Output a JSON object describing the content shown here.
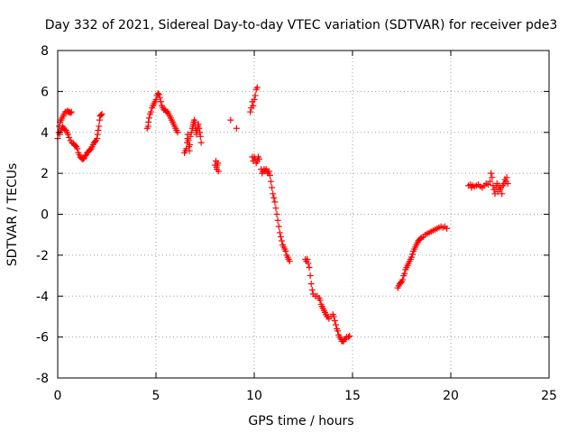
{
  "chart_data": {
    "type": "scatter",
    "title": "Day 332 of 2021, Sidereal Day-to-day VTEC variation (SDTVAR) for receiver pde3",
    "xlabel": "GPS time / hours",
    "ylabel": "SDTVAR / TECUs",
    "xlim": [
      0,
      25
    ],
    "ylim": [
      -8,
      8
    ],
    "xticks": [
      0,
      5,
      10,
      15,
      20,
      25
    ],
    "yticks": [
      -8,
      -6,
      -4,
      -2,
      0,
      2,
      4,
      6,
      8
    ],
    "xtick_labels": [
      "0",
      "5",
      "10",
      "15",
      "20",
      "25"
    ],
    "ytick_labels": [
      "-8",
      "-6",
      "-4",
      "-2",
      "0",
      "2",
      "4",
      "6",
      "8"
    ],
    "grid": true,
    "marker": "+",
    "color": "#ff0000",
    "series": [
      {
        "name": "SDTVAR",
        "points": [
          [
            0.0,
            3.7
          ],
          [
            0.05,
            4.0
          ],
          [
            0.08,
            4.3
          ],
          [
            0.12,
            4.5
          ],
          [
            0.18,
            4.6
          ],
          [
            0.22,
            4.7
          ],
          [
            0.28,
            4.8
          ],
          [
            0.32,
            4.9
          ],
          [
            0.38,
            5.0
          ],
          [
            0.45,
            5.0
          ],
          [
            0.5,
            5.05
          ],
          [
            0.55,
            5.0
          ],
          [
            0.6,
            5.0
          ],
          [
            0.65,
            4.95
          ],
          [
            0.7,
            5.0
          ],
          [
            0.1,
            3.9
          ],
          [
            0.15,
            4.1
          ],
          [
            0.2,
            4.2
          ],
          [
            0.25,
            4.3
          ],
          [
            0.3,
            4.2
          ],
          [
            0.35,
            4.15
          ],
          [
            0.42,
            4.1
          ],
          [
            0.48,
            4.0
          ],
          [
            0.52,
            3.9
          ],
          [
            0.58,
            3.75
          ],
          [
            0.65,
            3.6
          ],
          [
            0.72,
            3.5
          ],
          [
            0.8,
            3.45
          ],
          [
            0.85,
            3.4
          ],
          [
            0.9,
            3.35
          ],
          [
            0.95,
            3.3
          ],
          [
            1.0,
            3.2
          ],
          [
            1.05,
            3.0
          ],
          [
            1.1,
            2.9
          ],
          [
            1.15,
            2.8
          ],
          [
            1.2,
            2.75
          ],
          [
            1.25,
            2.7
          ],
          [
            1.3,
            2.7
          ],
          [
            1.35,
            2.75
          ],
          [
            1.4,
            2.85
          ],
          [
            1.45,
            2.9
          ],
          [
            1.5,
            3.0
          ],
          [
            1.55,
            3.05
          ],
          [
            1.6,
            3.1
          ],
          [
            1.65,
            3.15
          ],
          [
            1.7,
            3.2
          ],
          [
            1.75,
            3.3
          ],
          [
            1.8,
            3.4
          ],
          [
            1.85,
            3.5
          ],
          [
            1.9,
            3.55
          ],
          [
            1.95,
            3.6
          ],
          [
            2.0,
            3.7
          ],
          [
            2.03,
            3.9
          ],
          [
            2.06,
            4.1
          ],
          [
            2.1,
            4.3
          ],
          [
            2.13,
            4.6
          ],
          [
            2.16,
            4.8
          ],
          [
            2.2,
            4.85
          ],
          [
            2.25,
            4.9
          ],
          [
            4.55,
            4.2
          ],
          [
            4.6,
            4.3
          ],
          [
            4.62,
            4.5
          ],
          [
            4.65,
            4.7
          ],
          [
            4.7,
            4.9
          ],
          [
            4.75,
            5.0
          ],
          [
            4.8,
            5.2
          ],
          [
            4.85,
            5.3
          ],
          [
            4.9,
            5.4
          ],
          [
            4.95,
            5.5
          ],
          [
            5.0,
            5.6
          ],
          [
            5.05,
            5.8
          ],
          [
            5.1,
            5.9
          ],
          [
            5.15,
            5.85
          ],
          [
            5.2,
            5.7
          ],
          [
            5.25,
            5.5
          ],
          [
            5.3,
            5.3
          ],
          [
            5.35,
            5.2
          ],
          [
            5.4,
            5.1
          ],
          [
            5.45,
            5.1
          ],
          [
            5.5,
            5.05
          ],
          [
            5.55,
            5.0
          ],
          [
            5.6,
            5.0
          ],
          [
            5.65,
            4.9
          ],
          [
            5.7,
            4.8
          ],
          [
            5.75,
            4.7
          ],
          [
            5.8,
            4.6
          ],
          [
            5.85,
            4.5
          ],
          [
            5.9,
            4.4
          ],
          [
            5.95,
            4.3
          ],
          [
            6.0,
            4.2
          ],
          [
            6.05,
            4.1
          ],
          [
            6.1,
            4.0
          ],
          [
            6.45,
            3.0
          ],
          [
            6.5,
            3.1
          ],
          [
            6.55,
            3.2
          ],
          [
            6.58,
            3.5
          ],
          [
            6.6,
            3.7
          ],
          [
            6.62,
            3.9
          ],
          [
            6.65,
            3.6
          ],
          [
            6.68,
            3.3
          ],
          [
            6.7,
            3.1
          ],
          [
            6.72,
            3.4
          ],
          [
            6.75,
            3.8
          ],
          [
            6.8,
            4.0
          ],
          [
            6.85,
            4.2
          ],
          [
            6.88,
            4.3
          ],
          [
            6.9,
            4.4
          ],
          [
            6.92,
            4.5
          ],
          [
            6.95,
            4.6
          ],
          [
            6.98,
            4.5
          ],
          [
            7.0,
            4.3
          ],
          [
            7.03,
            4.1
          ],
          [
            7.06,
            3.9
          ],
          [
            7.1,
            4.1
          ],
          [
            7.13,
            4.3
          ],
          [
            7.16,
            4.4
          ],
          [
            7.2,
            4.2
          ],
          [
            7.23,
            4.0
          ],
          [
            7.26,
            3.8
          ],
          [
            7.3,
            3.5
          ],
          [
            8.0,
            2.4
          ],
          [
            8.05,
            2.6
          ],
          [
            8.08,
            2.3
          ],
          [
            8.1,
            2.2
          ],
          [
            8.12,
            2.4
          ],
          [
            8.15,
            2.5
          ],
          [
            8.18,
            2.1
          ],
          [
            8.8,
            4.6
          ],
          [
            9.1,
            4.2
          ],
          [
            9.8,
            5.0
          ],
          [
            9.85,
            5.2
          ],
          [
            9.9,
            5.5
          ],
          [
            9.95,
            5.3
          ],
          [
            10.0,
            5.6
          ],
          [
            10.05,
            5.8
          ],
          [
            10.1,
            6.1
          ],
          [
            10.15,
            6.2
          ],
          [
            9.9,
            2.8
          ],
          [
            9.95,
            2.6
          ],
          [
            10.0,
            2.8
          ],
          [
            10.05,
            2.7
          ],
          [
            10.1,
            2.5
          ],
          [
            10.15,
            2.6
          ],
          [
            10.2,
            2.8
          ],
          [
            10.25,
            2.7
          ],
          [
            10.35,
            2.2
          ],
          [
            10.4,
            2.0
          ],
          [
            10.45,
            2.1
          ],
          [
            10.5,
            2.2
          ],
          [
            10.55,
            2.1
          ],
          [
            10.6,
            2.2
          ],
          [
            10.65,
            2.1
          ],
          [
            10.7,
            2.0
          ],
          [
            10.75,
            2.1
          ],
          [
            10.8,
            1.9
          ],
          [
            10.85,
            1.6
          ],
          [
            10.9,
            1.3
          ],
          [
            10.95,
            1.0
          ],
          [
            11.0,
            0.8
          ],
          [
            11.05,
            0.6
          ],
          [
            11.1,
            0.3
          ],
          [
            11.15,
            0.0
          ],
          [
            11.2,
            -0.3
          ],
          [
            11.25,
            -0.6
          ],
          [
            11.3,
            -0.9
          ],
          [
            11.35,
            -1.1
          ],
          [
            11.4,
            -1.3
          ],
          [
            11.45,
            -1.5
          ],
          [
            11.5,
            -1.6
          ],
          [
            11.55,
            -1.7
          ],
          [
            11.6,
            -1.8
          ],
          [
            11.65,
            -2.0
          ],
          [
            11.7,
            -2.1
          ],
          [
            11.75,
            -2.2
          ],
          [
            11.8,
            -2.3
          ],
          [
            12.6,
            -2.2
          ],
          [
            12.65,
            -2.3
          ],
          [
            12.7,
            -2.2
          ],
          [
            12.75,
            -2.4
          ],
          [
            12.8,
            -2.6
          ],
          [
            12.85,
            -3.0
          ],
          [
            12.9,
            -3.4
          ],
          [
            12.95,
            -3.7
          ],
          [
            13.0,
            -3.9
          ],
          [
            13.1,
            -4.0
          ],
          [
            13.2,
            -4.0
          ],
          [
            13.3,
            -4.1
          ],
          [
            13.35,
            -4.2
          ],
          [
            13.4,
            -4.4
          ],
          [
            13.45,
            -4.5
          ],
          [
            13.5,
            -4.6
          ],
          [
            13.55,
            -4.7
          ],
          [
            13.6,
            -4.8
          ],
          [
            13.65,
            -4.9
          ],
          [
            13.7,
            -5.0
          ],
          [
            13.75,
            -5.0
          ],
          [
            13.8,
            -5.1
          ],
          [
            13.9,
            -5.0
          ],
          [
            14.0,
            -4.9
          ],
          [
            14.05,
            -5.0
          ],
          [
            14.1,
            -5.2
          ],
          [
            14.15,
            -5.4
          ],
          [
            14.2,
            -5.6
          ],
          [
            14.25,
            -5.7
          ],
          [
            14.3,
            -5.9
          ],
          [
            14.35,
            -6.0
          ],
          [
            14.4,
            -6.1
          ],
          [
            14.45,
            -6.2
          ],
          [
            14.5,
            -6.2
          ],
          [
            14.55,
            -6.2
          ],
          [
            14.6,
            -6.1
          ],
          [
            14.65,
            -6.1
          ],
          [
            14.7,
            -6.0
          ],
          [
            14.8,
            -6.0
          ],
          [
            14.85,
            -5.95
          ],
          [
            17.3,
            -3.6
          ],
          [
            17.35,
            -3.5
          ],
          [
            17.4,
            -3.4
          ],
          [
            17.45,
            -3.35
          ],
          [
            17.5,
            -3.3
          ],
          [
            17.55,
            -3.2
          ],
          [
            17.6,
            -3.0
          ],
          [
            17.65,
            -2.9
          ],
          [
            17.7,
            -2.7
          ],
          [
            17.75,
            -2.6
          ],
          [
            17.8,
            -2.5
          ],
          [
            17.85,
            -2.4
          ],
          [
            17.9,
            -2.3
          ],
          [
            17.95,
            -2.2
          ],
          [
            18.0,
            -2.1
          ],
          [
            18.05,
            -1.95
          ],
          [
            18.1,
            -1.8
          ],
          [
            18.15,
            -1.7
          ],
          [
            18.2,
            -1.6
          ],
          [
            18.25,
            -1.5
          ],
          [
            18.3,
            -1.4
          ],
          [
            18.35,
            -1.3
          ],
          [
            18.4,
            -1.25
          ],
          [
            18.45,
            -1.2
          ],
          [
            18.5,
            -1.15
          ],
          [
            18.6,
            -1.1
          ],
          [
            18.7,
            -1.0
          ],
          [
            18.8,
            -0.95
          ],
          [
            18.9,
            -0.9
          ],
          [
            19.0,
            -0.85
          ],
          [
            19.1,
            -0.8
          ],
          [
            19.2,
            -0.75
          ],
          [
            19.3,
            -0.7
          ],
          [
            19.4,
            -0.65
          ],
          [
            19.5,
            -0.6
          ],
          [
            19.6,
            -0.65
          ],
          [
            19.7,
            -0.6
          ],
          [
            19.8,
            -0.7
          ],
          [
            20.9,
            1.4
          ],
          [
            21.0,
            1.45
          ],
          [
            21.05,
            1.3
          ],
          [
            21.1,
            1.4
          ],
          [
            21.2,
            1.35
          ],
          [
            21.3,
            1.4
          ],
          [
            21.4,
            1.45
          ],
          [
            21.5,
            1.35
          ],
          [
            21.6,
            1.3
          ],
          [
            21.7,
            1.4
          ],
          [
            21.8,
            1.5
          ],
          [
            21.9,
            1.45
          ],
          [
            22.0,
            1.6
          ],
          [
            22.05,
            2.0
          ],
          [
            22.1,
            1.8
          ],
          [
            22.15,
            1.4
          ],
          [
            22.2,
            1.2
          ],
          [
            22.25,
            1.0
          ],
          [
            22.3,
            1.3
          ],
          [
            22.35,
            1.5
          ],
          [
            22.4,
            1.1
          ],
          [
            22.45,
            1.4
          ],
          [
            22.5,
            1.2
          ],
          [
            22.55,
            1.3
          ],
          [
            22.6,
            1.0
          ],
          [
            22.65,
            1.4
          ],
          [
            22.7,
            1.5
          ],
          [
            22.75,
            1.7
          ],
          [
            22.8,
            1.6
          ],
          [
            22.85,
            1.8
          ],
          [
            22.9,
            1.5
          ]
        ]
      }
    ]
  }
}
